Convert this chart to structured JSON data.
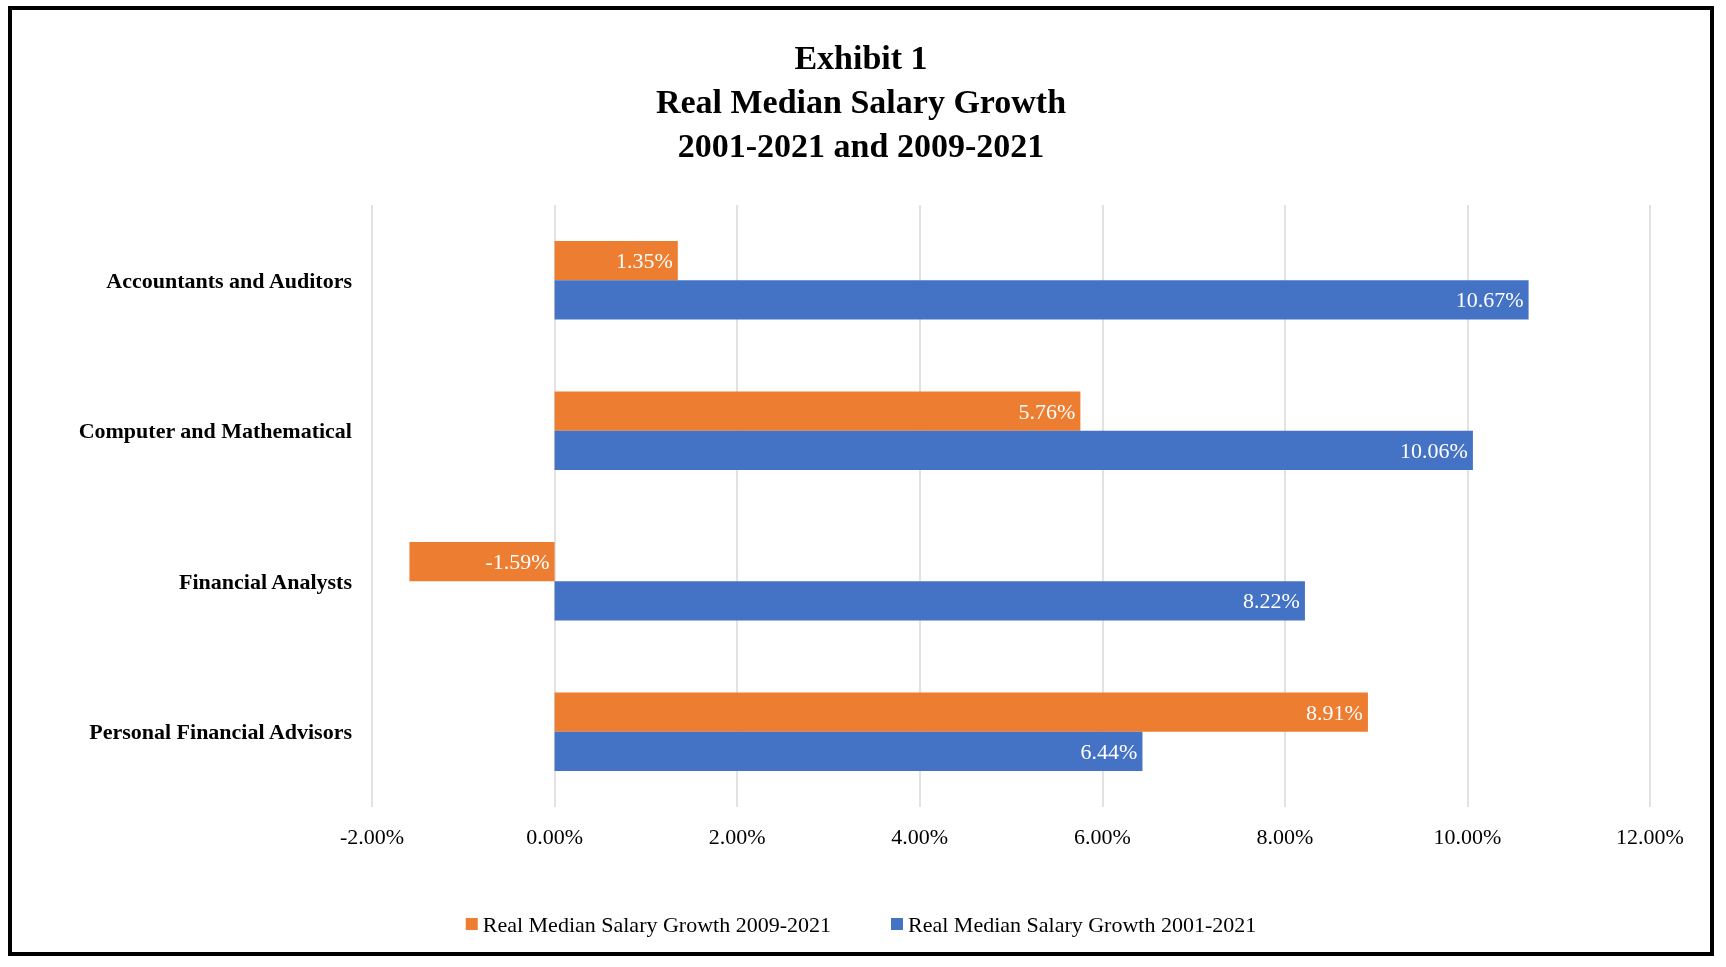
{
  "chart_data": {
    "type": "bar",
    "orientation": "horizontal",
    "title": "Exhibit 1\nReal Median Salary Growth\n2001-2021 and 2009-2021",
    "categories": [
      "Accountants and Auditors",
      "Computer and Mathematical",
      "Financial Analysts",
      "Personal Financial Advisors"
    ],
    "series": [
      {
        "name": "Real Median Salary Growth 2009-2021",
        "color": "#ed7d31",
        "values": [
          1.35,
          5.76,
          -1.59,
          8.91
        ],
        "value_labels": [
          "1.35%",
          "5.76%",
          "-1.59%",
          "8.91%"
        ]
      },
      {
        "name": "Real Median Salary Growth 2001-2021",
        "color": "#4472c4",
        "values": [
          10.67,
          10.06,
          8.22,
          6.44
        ],
        "value_labels": [
          "10.67%",
          "10.06%",
          "8.22%",
          "6.44%"
        ]
      }
    ],
    "xlim": [
      -2,
      12
    ],
    "xticks": [
      {
        "value": -2,
        "label": "-2.00%"
      },
      {
        "value": 0,
        "label": "0.00%"
      },
      {
        "value": 2,
        "label": "2.00%"
      },
      {
        "value": 4,
        "label": "4.00%"
      },
      {
        "value": 6,
        "label": "6.00%"
      },
      {
        "value": 8,
        "label": "8.00%"
      },
      {
        "value": 10,
        "label": "10.00%"
      },
      {
        "value": 12,
        "label": "12.00%"
      }
    ],
    "grid": "x",
    "legend": "bottom"
  }
}
